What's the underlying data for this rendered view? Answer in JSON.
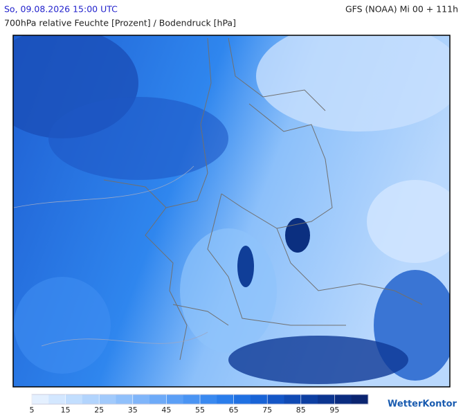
{
  "header": {
    "date": "So, 09.08.2026 15:00 UTC",
    "model": "GFS (NOAA) Mi 00 + 111h",
    "title": "700hPa relative Feuchte [Prozent] / Bodendruck [hPa]"
  },
  "colorbar": {
    "range": [
      5,
      105
    ],
    "ticks": [
      5,
      15,
      25,
      35,
      45,
      55,
      65,
      75,
      85,
      95
    ],
    "colors": [
      "#e4f0ff",
      "#d3e7ff",
      "#c2defe",
      "#b2d4fd",
      "#a1cafc",
      "#90c0fb",
      "#7fb5fa",
      "#6daaf8",
      "#5b9ff6",
      "#4a94f3",
      "#3989f0",
      "#2a7deb",
      "#1f70e2",
      "#1863d6",
      "#1456c6",
      "#104ab4",
      "#0d3fa2",
      "#0b3590",
      "#0a2c80",
      "#0a2470"
    ]
  },
  "logo": "WetterKontor"
}
